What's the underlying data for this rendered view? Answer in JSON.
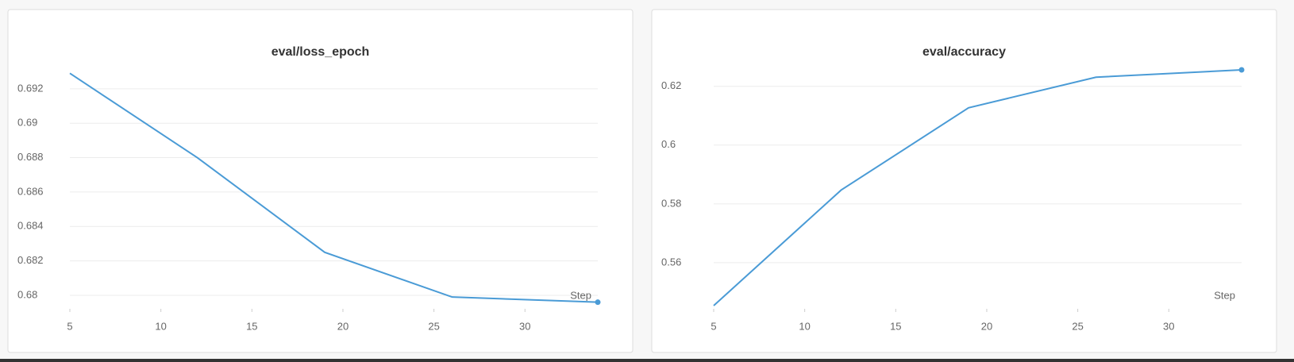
{
  "chart_data": [
    {
      "type": "line",
      "title": "eval/loss_epoch",
      "x_label": "Step",
      "color": "#4a9bd6",
      "x": [
        5,
        12,
        19,
        26,
        34
      ],
      "values": [
        0.6929,
        0.688,
        0.6825,
        0.6799,
        0.6796
      ],
      "xlim": [
        5,
        34
      ],
      "ylim": [
        0.6794,
        0.6931
      ],
      "xticks": [
        5,
        10,
        15,
        20,
        25,
        30
      ],
      "yticks": [
        0.68,
        0.682,
        0.684,
        0.686,
        0.688,
        0.69,
        0.692
      ],
      "grid": true
    },
    {
      "type": "line",
      "title": "eval/accuracy",
      "x_label": "Step",
      "color": "#4a9bd6",
      "x": [
        5,
        12,
        19,
        26,
        34
      ],
      "values": [
        0.5454,
        0.5847,
        0.6127,
        0.6231,
        0.6256
      ],
      "xlim": [
        5,
        34
      ],
      "ylim": [
        0.5454,
        0.6256
      ],
      "xticks": [
        5,
        10,
        15,
        20,
        25,
        30
      ],
      "yticks": [
        0.56,
        0.58,
        0.6,
        0.62
      ],
      "grid": true
    }
  ]
}
